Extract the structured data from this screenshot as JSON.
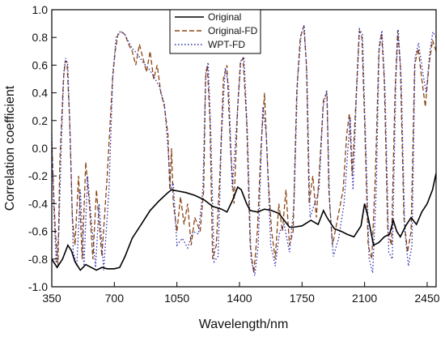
{
  "chart_data": {
    "type": "line",
    "title": "",
    "xlabel": "Wavelength/nm",
    "ylabel": "Correlation coefficient",
    "xlim": [
      350,
      2500
    ],
    "ylim": [
      -1.0,
      1.0
    ],
    "x_ticks": [
      350,
      700,
      1050,
      1400,
      1750,
      2100,
      2450
    ],
    "y_ticks": [
      -1.0,
      -0.8,
      -0.6,
      -0.4,
      -0.2,
      0.0,
      0.2,
      0.4,
      0.6,
      0.8,
      1.0
    ],
    "grid": false,
    "legend_position": "top-center",
    "series": [
      {
        "name": "Original",
        "color": "#000000",
        "style": "solid",
        "points": [
          [
            350,
            -0.8
          ],
          [
            380,
            -0.86
          ],
          [
            410,
            -0.8
          ],
          [
            440,
            -0.7
          ],
          [
            460,
            -0.74
          ],
          [
            480,
            -0.82
          ],
          [
            510,
            -0.88
          ],
          [
            540,
            -0.84
          ],
          [
            570,
            -0.86
          ],
          [
            600,
            -0.88
          ],
          [
            630,
            -0.86
          ],
          [
            660,
            -0.87
          ],
          [
            700,
            -0.87
          ],
          [
            730,
            -0.86
          ],
          [
            760,
            -0.78
          ],
          [
            800,
            -0.65
          ],
          [
            850,
            -0.55
          ],
          [
            900,
            -0.45
          ],
          [
            950,
            -0.38
          ],
          [
            1000,
            -0.32
          ],
          [
            1020,
            -0.3
          ],
          [
            1060,
            -0.31
          ],
          [
            1100,
            -0.32
          ],
          [
            1150,
            -0.34
          ],
          [
            1200,
            -0.37
          ],
          [
            1250,
            -0.42
          ],
          [
            1300,
            -0.44
          ],
          [
            1330,
            -0.46
          ],
          [
            1360,
            -0.38
          ],
          [
            1390,
            -0.28
          ],
          [
            1410,
            -0.3
          ],
          [
            1440,
            -0.4
          ],
          [
            1460,
            -0.45
          ],
          [
            1500,
            -0.46
          ],
          [
            1540,
            -0.44
          ],
          [
            1580,
            -0.45
          ],
          [
            1620,
            -0.47
          ],
          [
            1650,
            -0.52
          ],
          [
            1680,
            -0.57
          ],
          [
            1700,
            -0.57
          ],
          [
            1750,
            -0.56
          ],
          [
            1800,
            -0.52
          ],
          [
            1840,
            -0.55
          ],
          [
            1870,
            -0.45
          ],
          [
            1890,
            -0.5
          ],
          [
            1930,
            -0.58
          ],
          [
            1970,
            -0.6
          ],
          [
            2000,
            -0.62
          ],
          [
            2040,
            -0.64
          ],
          [
            2080,
            -0.56
          ],
          [
            2100,
            -0.4
          ],
          [
            2120,
            -0.5
          ],
          [
            2150,
            -0.7
          ],
          [
            2180,
            -0.68
          ],
          [
            2210,
            -0.64
          ],
          [
            2240,
            -0.62
          ],
          [
            2260,
            -0.52
          ],
          [
            2280,
            -0.6
          ],
          [
            2300,
            -0.64
          ],
          [
            2330,
            -0.56
          ],
          [
            2360,
            -0.5
          ],
          [
            2390,
            -0.55
          ],
          [
            2420,
            -0.46
          ],
          [
            2450,
            -0.4
          ],
          [
            2480,
            -0.3
          ],
          [
            2500,
            -0.18
          ]
        ]
      },
      {
        "name": "Original-FD",
        "color": "#8B4513",
        "style": "dashed",
        "points": [
          [
            350,
            0.05
          ],
          [
            360,
            -0.3
          ],
          [
            370,
            -0.6
          ],
          [
            385,
            -0.85
          ],
          [
            395,
            -0.1
          ],
          [
            405,
            0.2
          ],
          [
            415,
            0.5
          ],
          [
            425,
            0.63
          ],
          [
            435,
            0.62
          ],
          [
            450,
            0.2
          ],
          [
            465,
            -0.5
          ],
          [
            480,
            -0.7
          ],
          [
            500,
            -0.2
          ],
          [
            520,
            -0.8
          ],
          [
            540,
            -0.1
          ],
          [
            560,
            -0.4
          ],
          [
            580,
            -0.8
          ],
          [
            600,
            -0.3
          ],
          [
            630,
            -0.78
          ],
          [
            660,
            -0.2
          ],
          [
            690,
            0.5
          ],
          [
            705,
            0.7
          ],
          [
            720,
            0.82
          ],
          [
            740,
            0.84
          ],
          [
            760,
            0.82
          ],
          [
            780,
            0.75
          ],
          [
            800,
            0.7
          ],
          [
            820,
            0.6
          ],
          [
            840,
            0.75
          ],
          [
            860,
            0.65
          ],
          [
            880,
            0.55
          ],
          [
            900,
            0.7
          ],
          [
            920,
            0.5
          ],
          [
            940,
            0.6
          ],
          [
            960,
            0.4
          ],
          [
            980,
            0.3
          ],
          [
            1000,
            0.1
          ],
          [
            1010,
            -0.3
          ],
          [
            1020,
            0.0
          ],
          [
            1030,
            -0.4
          ],
          [
            1050,
            -0.6
          ],
          [
            1070,
            -0.35
          ],
          [
            1090,
            -0.55
          ],
          [
            1110,
            -0.4
          ],
          [
            1130,
            -0.7
          ],
          [
            1150,
            -0.5
          ],
          [
            1180,
            -0.6
          ],
          [
            1200,
            -0.3
          ],
          [
            1210,
            0.5
          ],
          [
            1220,
            0.6
          ],
          [
            1235,
            0.2
          ],
          [
            1250,
            -0.8
          ],
          [
            1270,
            -0.7
          ],
          [
            1290,
            -0.2
          ],
          [
            1310,
            0.5
          ],
          [
            1330,
            0.6
          ],
          [
            1350,
            0.0
          ],
          [
            1370,
            -0.4
          ],
          [
            1390,
            0.3
          ],
          [
            1405,
            0.62
          ],
          [
            1420,
            0.65
          ],
          [
            1440,
            0.2
          ],
          [
            1460,
            -0.7
          ],
          [
            1480,
            -0.9
          ],
          [
            1500,
            -0.6
          ],
          [
            1520,
            0.0
          ],
          [
            1540,
            0.4
          ],
          [
            1560,
            -0.2
          ],
          [
            1580,
            -0.6
          ],
          [
            1600,
            -0.8
          ],
          [
            1620,
            -0.4
          ],
          [
            1640,
            -0.6
          ],
          [
            1660,
            -0.3
          ],
          [
            1680,
            -0.7
          ],
          [
            1700,
            -0.6
          ],
          [
            1720,
            0.4
          ],
          [
            1740,
            0.8
          ],
          [
            1760,
            0.88
          ],
          [
            1775,
            0.6
          ],
          [
            1790,
            -0.4
          ],
          [
            1810,
            -0.2
          ],
          [
            1830,
            -0.5
          ],
          [
            1850,
            -0.1
          ],
          [
            1870,
            0.35
          ],
          [
            1890,
            0.4
          ],
          [
            1900,
            -0.3
          ],
          [
            1920,
            -0.7
          ],
          [
            1950,
            -0.5
          ],
          [
            1980,
            -0.3
          ],
          [
            2000,
            0.1
          ],
          [
            2015,
            0.25
          ],
          [
            2030,
            -0.2
          ],
          [
            2050,
            0.3
          ],
          [
            2070,
            0.85
          ],
          [
            2085,
            0.8
          ],
          [
            2100,
            0.2
          ],
          [
            2120,
            -0.7
          ],
          [
            2140,
            -0.8
          ],
          [
            2160,
            -0.2
          ],
          [
            2180,
            0.7
          ],
          [
            2195,
            0.83
          ],
          [
            2210,
            0.5
          ],
          [
            2230,
            -0.6
          ],
          [
            2250,
            -0.7
          ],
          [
            2270,
            0.4
          ],
          [
            2285,
            0.85
          ],
          [
            2300,
            0.6
          ],
          [
            2320,
            -0.5
          ],
          [
            2340,
            -0.75
          ],
          [
            2360,
            -0.6
          ],
          [
            2380,
            0.6
          ],
          [
            2400,
            0.72
          ],
          [
            2420,
            0.5
          ],
          [
            2440,
            0.3
          ],
          [
            2460,
            0.6
          ],
          [
            2480,
            0.78
          ],
          [
            2500,
            0.7
          ]
        ]
      },
      {
        "name": "WPT-FD",
        "color": "#2b2bb0",
        "style": "dotted",
        "points": [
          [
            350,
            0.1
          ],
          [
            360,
            -0.4
          ],
          [
            375,
            -0.83
          ],
          [
            390,
            -0.6
          ],
          [
            405,
            0.1
          ],
          [
            418,
            0.55
          ],
          [
            428,
            0.65
          ],
          [
            440,
            0.6
          ],
          [
            455,
            0.0
          ],
          [
            470,
            -0.75
          ],
          [
            490,
            -0.85
          ],
          [
            510,
            -0.3
          ],
          [
            530,
            -0.85
          ],
          [
            550,
            -0.2
          ],
          [
            570,
            -0.5
          ],
          [
            595,
            -0.86
          ],
          [
            615,
            -0.4
          ],
          [
            640,
            -0.88
          ],
          [
            670,
            -0.3
          ],
          [
            692,
            0.55
          ],
          [
            710,
            0.8
          ],
          [
            730,
            0.84
          ],
          [
            755,
            0.83
          ],
          [
            775,
            0.78
          ],
          [
            800,
            0.72
          ],
          [
            830,
            0.68
          ],
          [
            860,
            0.62
          ],
          [
            890,
            0.58
          ],
          [
            920,
            0.52
          ],
          [
            950,
            0.45
          ],
          [
            980,
            0.32
          ],
          [
            1000,
            0.0
          ],
          [
            1015,
            -0.3
          ],
          [
            1030,
            -0.25
          ],
          [
            1050,
            -0.7
          ],
          [
            1080,
            -0.65
          ],
          [
            1110,
            -0.72
          ],
          [
            1140,
            -0.6
          ],
          [
            1170,
            -0.62
          ],
          [
            1195,
            -0.3
          ],
          [
            1212,
            0.55
          ],
          [
            1225,
            0.62
          ],
          [
            1240,
            0.1
          ],
          [
            1258,
            -0.82
          ],
          [
            1280,
            -0.78
          ],
          [
            1300,
            0.1
          ],
          [
            1320,
            0.58
          ],
          [
            1340,
            0.45
          ],
          [
            1360,
            -0.3
          ],
          [
            1385,
            0.2
          ],
          [
            1408,
            0.63
          ],
          [
            1425,
            0.66
          ],
          [
            1445,
            0.1
          ],
          [
            1465,
            -0.8
          ],
          [
            1485,
            -0.92
          ],
          [
            1505,
            -0.7
          ],
          [
            1530,
            0.3
          ],
          [
            1550,
            0.1
          ],
          [
            1575,
            -0.7
          ],
          [
            1600,
            -0.85
          ],
          [
            1625,
            -0.6
          ],
          [
            1650,
            -0.55
          ],
          [
            1680,
            -0.75
          ],
          [
            1705,
            -0.4
          ],
          [
            1725,
            0.5
          ],
          [
            1745,
            0.82
          ],
          [
            1762,
            0.89
          ],
          [
            1778,
            0.5
          ],
          [
            1795,
            -0.5
          ],
          [
            1820,
            -0.4
          ],
          [
            1845,
            -0.3
          ],
          [
            1868,
            0.3
          ],
          [
            1888,
            0.42
          ],
          [
            1905,
            -0.4
          ],
          [
            1925,
            -0.78
          ],
          [
            1955,
            -0.65
          ],
          [
            1985,
            -0.4
          ],
          [
            2010,
            0.05
          ],
          [
            2020,
            0.22
          ],
          [
            2035,
            -0.3
          ],
          [
            2055,
            0.4
          ],
          [
            2072,
            0.86
          ],
          [
            2088,
            0.82
          ],
          [
            2105,
            0.1
          ],
          [
            2125,
            -0.8
          ],
          [
            2145,
            -0.9
          ],
          [
            2165,
            -0.3
          ],
          [
            2182,
            0.75
          ],
          [
            2197,
            0.85
          ],
          [
            2215,
            0.4
          ],
          [
            2235,
            -0.75
          ],
          [
            2255,
            -0.8
          ],
          [
            2275,
            0.5
          ],
          [
            2288,
            0.86
          ],
          [
            2305,
            0.5
          ],
          [
            2325,
            -0.6
          ],
          [
            2345,
            -0.85
          ],
          [
            2365,
            -0.7
          ],
          [
            2382,
            0.65
          ],
          [
            2402,
            0.76
          ],
          [
            2425,
            0.55
          ],
          [
            2445,
            0.4
          ],
          [
            2465,
            0.7
          ],
          [
            2482,
            0.84
          ],
          [
            2500,
            0.8
          ]
        ]
      }
    ]
  }
}
